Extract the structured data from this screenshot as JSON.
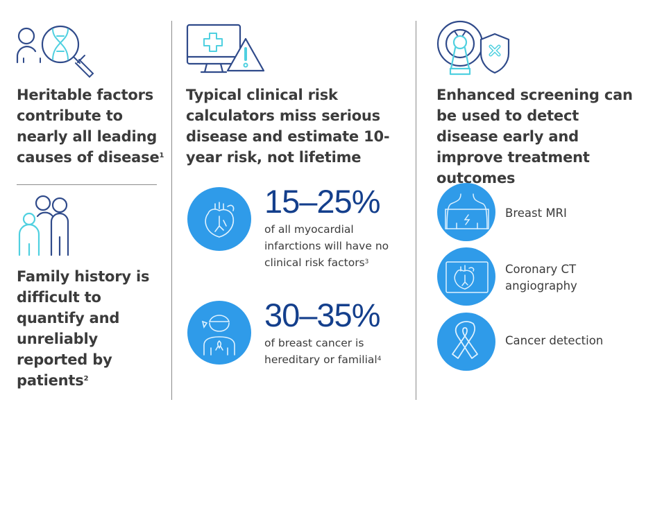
{
  "colors": {
    "navy": "#2f4a8a",
    "cyan": "#4fd0e0",
    "circle": "#2f9be9",
    "number": "#143f8c",
    "text": "#3b3b3b"
  },
  "col1": {
    "heading1": "Heritable factors contribute to nearly all leading causes of disease",
    "heading1_ref": "1",
    "heading2": "Family history is difficult to quantify and unreliably reported by patients",
    "heading2_ref": "2",
    "icons": [
      "person-dna-magnifier-icon",
      "family-icon"
    ]
  },
  "col2": {
    "heading": "Typical clinical risk calculators miss serious disease and estimate 10-year risk, not lifetime",
    "icon": "monitor-warning-icon",
    "stats": [
      {
        "value": "15–25%",
        "text": "of all myocardial infarctions will have no clinical risk factors",
        "ref": "3",
        "icon": "heart-icon"
      },
      {
        "value": "30–35%",
        "text": "of breast cancer is hereditary or familial",
        "ref": "4",
        "icon": "patient-ribbon-icon"
      }
    ]
  },
  "col3": {
    "heading": "Enhanced screening can be used to detect disease early and improve treatment outcomes",
    "icon": "scanner-shield-icon",
    "items": [
      {
        "label": "Breast MRI",
        "icon": "torso-scan-icon"
      },
      {
        "label": "Coronary CT angiography",
        "icon": "heart-scan-icon"
      },
      {
        "label": "Cancer detection",
        "icon": "ribbon-icon"
      }
    ]
  }
}
